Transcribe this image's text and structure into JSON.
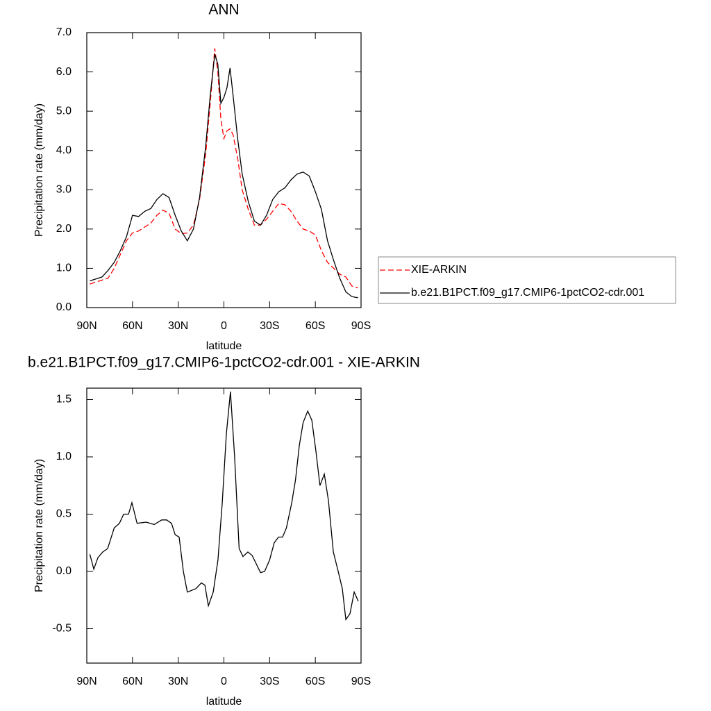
{
  "chart_data": [
    {
      "type": "line",
      "title": "ANN",
      "xlabel": "latitude",
      "ylabel": "Precipitation rate (mm/day)",
      "x": [
        88,
        84,
        80,
        76,
        72,
        68,
        64,
        60,
        56,
        52,
        48,
        44,
        40,
        36,
        32,
        28,
        24,
        20,
        16,
        12,
        9,
        6,
        4,
        2,
        0,
        -2,
        -4,
        -6,
        -9,
        -12,
        -16,
        -20,
        -24,
        -28,
        -32,
        -36,
        -40,
        -44,
        -48,
        -52,
        -56,
        -60,
        -64,
        -68,
        -72,
        -76,
        -80,
        -84,
        -88
      ],
      "series": [
        {
          "name": "XIE-ARKIN",
          "color": "#ff0000",
          "dash": "dashed",
          "values": [
            0.6,
            0.65,
            0.7,
            0.75,
            1.0,
            1.35,
            1.7,
            1.9,
            1.95,
            2.05,
            2.15,
            2.35,
            2.48,
            2.4,
            2.0,
            1.88,
            1.9,
            2.1,
            2.75,
            3.9,
            5.2,
            6.6,
            6.0,
            4.8,
            4.3,
            4.5,
            4.55,
            4.4,
            3.8,
            3.0,
            2.5,
            2.1,
            2.1,
            2.25,
            2.45,
            2.65,
            2.62,
            2.45,
            2.2,
            2.0,
            1.95,
            1.85,
            1.45,
            1.15,
            1.0,
            0.85,
            0.78,
            0.55,
            0.5
          ]
        },
        {
          "name": "b.e21.B1PCT.f09_g17.CMIP6-1pctCO2-cdr.001",
          "color": "#000000",
          "dash": "solid",
          "values": [
            0.68,
            0.73,
            0.78,
            0.95,
            1.15,
            1.45,
            1.8,
            2.35,
            2.32,
            2.45,
            2.52,
            2.75,
            2.9,
            2.8,
            2.35,
            1.95,
            1.7,
            2.0,
            2.8,
            4.1,
            5.4,
            6.45,
            6.2,
            5.2,
            5.35,
            5.6,
            6.1,
            5.4,
            4.3,
            3.4,
            2.7,
            2.2,
            2.1,
            2.35,
            2.75,
            2.95,
            3.05,
            3.25,
            3.4,
            3.45,
            3.35,
            2.95,
            2.5,
            1.7,
            1.2,
            0.75,
            0.4,
            0.28,
            0.25
          ]
        }
      ],
      "xlim": [
        90,
        -90
      ],
      "xticks": [
        {
          "value": 90,
          "label": "90N"
        },
        {
          "value": 60,
          "label": "60N"
        },
        {
          "value": 30,
          "label": "30N"
        },
        0,
        {
          "value": -30,
          "label": "30S"
        },
        {
          "value": -60,
          "label": "60S"
        },
        {
          "value": -90,
          "label": "90S"
        }
      ],
      "ylim": [
        0,
        7
      ],
      "yticks": [
        {
          "value": 0,
          "label": "0.0"
        },
        {
          "value": 1,
          "label": "1.0"
        },
        {
          "value": 2,
          "label": "2.0"
        },
        {
          "value": 3,
          "label": "3.0"
        },
        {
          "value": 4,
          "label": "4.0"
        },
        {
          "value": 5,
          "label": "5.0"
        },
        {
          "value": 6,
          "label": "6.0"
        },
        {
          "value": 7,
          "label": "7.0"
        }
      ],
      "legend": "right"
    },
    {
      "type": "line",
      "title": "b.e21.B1PCT.f09_g17.CMIP6-1pctCO2-cdr.001 - XIE-ARKIN",
      "xlabel": "latitude",
      "ylabel": "Precipitation rate (mm/day)",
      "x": [
        88,
        85.4,
        82.7,
        79.5,
        76.3,
        72,
        68.6,
        65.8,
        62.6,
        60.4,
        57,
        51,
        45.8,
        40.8,
        37.6,
        34.4,
        32,
        29.4,
        26.6,
        24,
        18.4,
        14.8,
        12.5,
        10.2,
        7,
        3.9,
        1.1,
        -1.6,
        -4.3,
        -7,
        -10,
        -12.5,
        -15.7,
        -18.5,
        -24,
        -26.7,
        -30,
        -33,
        -35.8,
        -38.5,
        -41,
        -44.5,
        -47,
        -49.5,
        -52,
        -55,
        -57.7,
        -60.4,
        -63,
        -65.9,
        -68.6,
        -71.8,
        -75,
        -77.7,
        -80,
        -82.7,
        -85.5,
        -88.2
      ],
      "series": [
        {
          "name": "b.e21.B1PCT.f09_g17.CMIP6-1pctCO2-cdr.001 - XIE-ARKIN",
          "color": "#000000",
          "dash": "solid",
          "values": [
            0.15,
            0.02,
            0.12,
            0.17,
            0.2,
            0.38,
            0.42,
            0.5,
            0.5,
            0.6,
            0.42,
            0.43,
            0.41,
            0.45,
            0.45,
            0.42,
            0.32,
            0.3,
            0.0,
            -0.18,
            -0.15,
            -0.1,
            -0.12,
            -0.3,
            -0.18,
            0.1,
            0.6,
            1.2,
            1.57,
            1.0,
            0.2,
            0.13,
            0.17,
            0.14,
            -0.01,
            0.0,
            0.1,
            0.25,
            0.3,
            0.3,
            0.38,
            0.6,
            0.8,
            1.1,
            1.3,
            1.4,
            1.32,
            1.05,
            0.75,
            0.85,
            0.62,
            0.17,
            0.0,
            -0.15,
            -0.42,
            -0.37,
            -0.18,
            -0.26
          ]
        }
      ],
      "xlim": [
        90,
        -90
      ],
      "xticks": [
        {
          "value": 90,
          "label": "90N"
        },
        {
          "value": 60,
          "label": "60N"
        },
        {
          "value": 30,
          "label": "30N"
        },
        0,
        {
          "value": -30,
          "label": "30S"
        },
        {
          "value": -60,
          "label": "60S"
        },
        {
          "value": -90,
          "label": "90S"
        }
      ],
      "ylim": [
        -0.8,
        1.6
      ],
      "yticks": [
        -0.5,
        {
          "value": 0,
          "label": "0.0"
        },
        0.5,
        {
          "value": 1,
          "label": "1.0"
        },
        1.5
      ]
    }
  ]
}
